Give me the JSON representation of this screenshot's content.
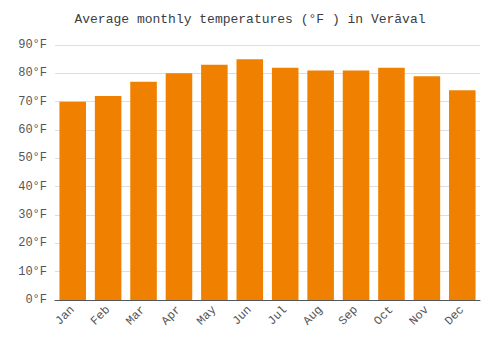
{
  "chart_data": {
    "type": "bar",
    "title": "Average monthly temperatures (°F ) in Verāval",
    "categories": [
      "Jan",
      "Feb",
      "Mar",
      "Apr",
      "May",
      "Jun",
      "Jul",
      "Aug",
      "Sep",
      "Oct",
      "Nov",
      "Dec"
    ],
    "values": [
      70,
      72,
      77,
      80,
      83,
      85,
      82,
      81,
      81,
      82,
      79,
      74
    ],
    "color": "#F08000",
    "ylim": [
      0,
      90
    ],
    "yticks": [
      {
        "value": 0,
        "label": "0°F"
      },
      {
        "value": 10,
        "label": "10°F"
      },
      {
        "value": 20,
        "label": "20°F"
      },
      {
        "value": 30,
        "label": "30°F"
      },
      {
        "value": 40,
        "label": "40°F"
      },
      {
        "value": 50,
        "label": "50°F"
      },
      {
        "value": 60,
        "label": "60°F"
      },
      {
        "value": 70,
        "label": "70°F"
      },
      {
        "value": 80,
        "label": "80°F"
      },
      {
        "value": 90,
        "label": "90°F"
      }
    ],
    "grid": true
  }
}
